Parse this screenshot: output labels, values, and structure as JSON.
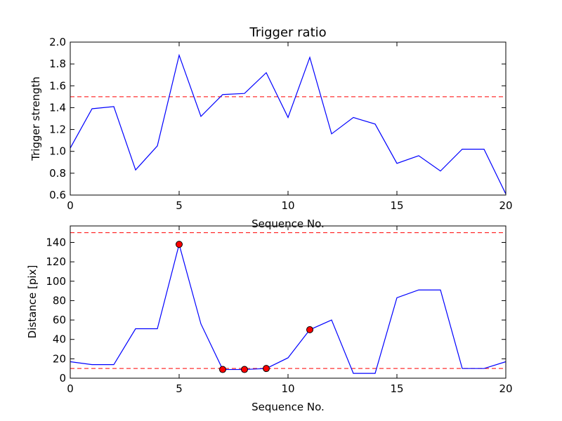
{
  "chart_data": [
    {
      "type": "line",
      "title": "Trigger ratio",
      "xlabel": "Sequence No.",
      "ylabel": "Trigger strength",
      "xlim": [
        0,
        20
      ],
      "ylim": [
        0.6,
        2.0
      ],
      "xticks": [
        0,
        5,
        10,
        15,
        20
      ],
      "yticks": [
        0.6,
        0.8,
        1.0,
        1.2,
        1.4,
        1.6,
        1.8,
        2.0
      ],
      "ytick_labels": [
        "0.6",
        "0.8",
        "1.0",
        "1.2",
        "1.4",
        "1.6",
        "1.8",
        "2.0"
      ],
      "series": [
        {
          "color": "#0000ff",
          "x": [
            0,
            1,
            2,
            3,
            4,
            5,
            6,
            7,
            8,
            9,
            10,
            11,
            12,
            13,
            14,
            15,
            16,
            17,
            18,
            19,
            20
          ],
          "values": [
            1.03,
            1.39,
            1.41,
            0.83,
            1.05,
            1.88,
            1.32,
            1.52,
            1.53,
            1.72,
            1.31,
            1.86,
            1.16,
            1.31,
            1.25,
            0.89,
            0.96,
            0.82,
            1.02,
            1.02,
            0.61
          ]
        }
      ],
      "threshold_lines": [
        {
          "y": 1.5,
          "color": "#ff0000",
          "style": "dashed"
        }
      ]
    },
    {
      "type": "line",
      "title": "",
      "xlabel": "Sequence No.",
      "ylabel": "Distance [pix]",
      "xlim": [
        0,
        20
      ],
      "ylim": [
        0,
        157
      ],
      "xticks": [
        0,
        5,
        10,
        15,
        20
      ],
      "yticks": [
        0,
        20,
        40,
        60,
        80,
        100,
        120,
        140
      ],
      "series": [
        {
          "color": "#0000ff",
          "x": [
            0,
            1,
            2,
            3,
            4,
            5,
            6,
            7,
            8,
            9,
            10,
            11,
            12,
            13,
            14,
            15,
            16,
            17,
            18,
            19,
            20
          ],
          "values": [
            17,
            14,
            14,
            51,
            51,
            138,
            56,
            9,
            9,
            10,
            21,
            50,
            60,
            5,
            5,
            83,
            91,
            91,
            10,
            10,
            17
          ]
        }
      ],
      "markers": {
        "color": "#ff0000",
        "x": [
          5,
          7,
          8,
          9,
          11
        ],
        "values": [
          138,
          9,
          9,
          10,
          50
        ]
      },
      "threshold_lines": [
        {
          "y": 150,
          "color": "#ff0000",
          "style": "dashed"
        },
        {
          "y": 10,
          "color": "#ff0000",
          "style": "dashed"
        }
      ]
    }
  ]
}
